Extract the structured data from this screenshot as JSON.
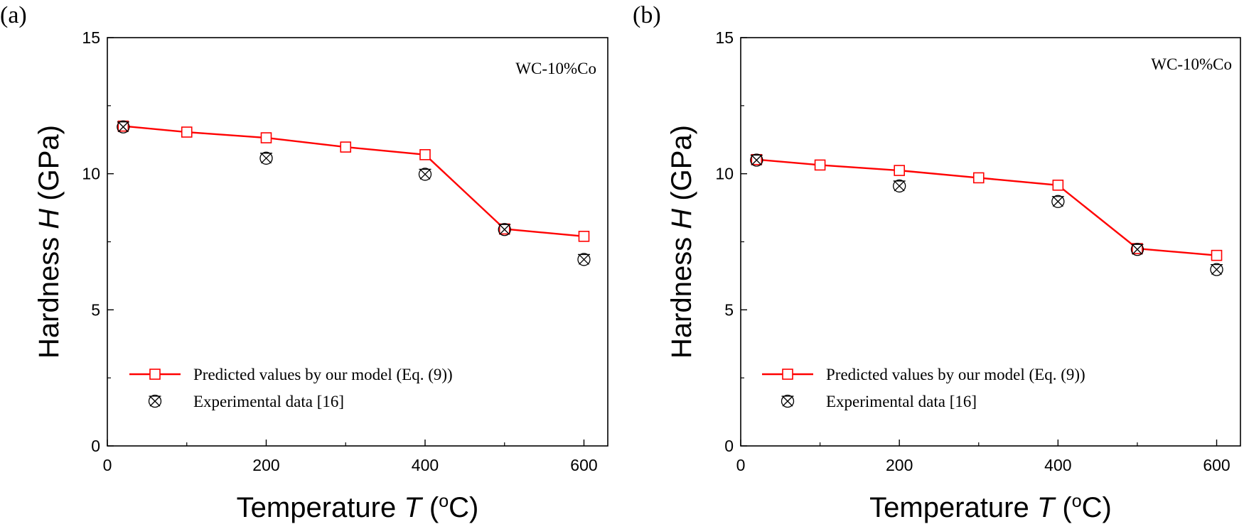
{
  "chart_data": [
    {
      "type": "line",
      "panel_label": "(a)",
      "annotation": "WC-10%Co",
      "xlabel": {
        "text": "Temperature ",
        "var": "T",
        "unit_open": " (",
        "sup": "o",
        "unit_close": "C)"
      },
      "ylabel": {
        "text": "Hardness ",
        "var": "H",
        "unit": " (GPa)"
      },
      "xlim": [
        0,
        630
      ],
      "ylim": [
        0,
        15
      ],
      "xticks": [
        0,
        200,
        400,
        600
      ],
      "yticks": [
        0,
        5,
        10,
        15
      ],
      "series": [
        {
          "name": "Predicted values by our model (Eq. (9))",
          "marker": "open-square",
          "color": "#ff0000",
          "x": [
            20,
            100,
            200,
            300,
            400,
            500,
            600
          ],
          "y": [
            11.75,
            11.53,
            11.32,
            10.98,
            10.7,
            7.97,
            7.7
          ]
        },
        {
          "name": "Experimental data [16]",
          "marker": "crossed-circle",
          "color": "#000000",
          "x": [
            20,
            200,
            400,
            500,
            600
          ],
          "y": [
            11.72,
            10.57,
            9.98,
            7.95,
            6.85
          ]
        }
      ]
    },
    {
      "type": "line",
      "panel_label": "(b)",
      "annotation": "WC-10%Co",
      "xlabel": {
        "text": "Temperature ",
        "var": "T",
        "unit_open": " (",
        "sup": "o",
        "unit_close": "C)"
      },
      "ylabel": {
        "text": "Hardness ",
        "var": "H",
        "unit": " (GPa)"
      },
      "xlim": [
        0,
        630
      ],
      "ylim": [
        0,
        15
      ],
      "xticks": [
        0,
        200,
        400,
        600
      ],
      "yticks": [
        0,
        5,
        10,
        15
      ],
      "series": [
        {
          "name": "Predicted values by our model (Eq. (9))",
          "marker": "open-square",
          "color": "#ff0000",
          "x": [
            20,
            100,
            200,
            300,
            400,
            500,
            600
          ],
          "y": [
            10.52,
            10.32,
            10.12,
            9.85,
            9.58,
            7.25,
            7.0
          ]
        },
        {
          "name": "Experimental data [16]",
          "marker": "crossed-circle",
          "color": "#000000",
          "x": [
            20,
            200,
            400,
            500,
            600
          ],
          "y": [
            10.5,
            9.55,
            8.98,
            7.22,
            6.48
          ]
        }
      ]
    }
  ]
}
